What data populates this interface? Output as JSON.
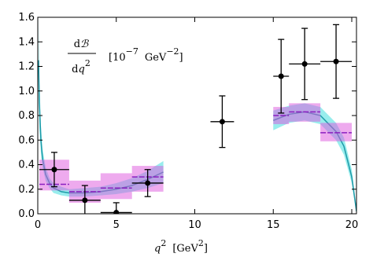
{
  "chart_data": {
    "type": "errorbar",
    "xlabel": {
      "var": "q",
      "exp": "2",
      "unit": "[GeV",
      "unit_exp": "2",
      "close": "]"
    },
    "annotation": {
      "num_d": "d",
      "num_var": "ℬ",
      "den_d": "d",
      "den_var": "q",
      "den_exp": "2",
      "unit_open": "[10",
      "unit_exp": "−7",
      "unit": "GeV",
      "unit_exp2": "−2",
      "unit_close": "]"
    },
    "xlim": [
      0,
      20.3
    ],
    "ylim": [
      0,
      1.6
    ],
    "xticks": [
      0,
      5,
      10,
      15,
      20
    ],
    "yticks": [
      {
        "value": 0,
        "label": "0.0"
      },
      {
        "value": 0.2,
        "label": "0.2"
      },
      {
        "value": 0.4,
        "label": "0.4"
      },
      {
        "value": 0.6,
        "label": "0.6"
      },
      {
        "value": 0.8,
        "label": "0.8"
      },
      {
        "value": 1.0,
        "label": "1.0"
      },
      {
        "value": 1.2,
        "label": "1.2"
      },
      {
        "value": 1.4,
        "label": "1.4"
      },
      {
        "value": 1.6,
        "label": "1.6"
      }
    ],
    "band": {
      "color": "#44dede",
      "line_color": "#1f9aa8",
      "x": [
        0.05,
        0.1,
        0.2,
        0.3,
        0.5,
        0.75,
        1,
        1.5,
        2,
        3,
        4,
        5,
        6,
        7,
        8,
        11.5,
        15,
        16,
        17,
        18,
        19,
        19.5,
        20,
        20.3
      ],
      "values": [
        1.25,
        0.9,
        0.6,
        0.45,
        0.32,
        0.25,
        0.21,
        0.18,
        0.17,
        0.17,
        0.18,
        0.2,
        0.23,
        0.28,
        0.34,
        null,
        0.76,
        0.81,
        0.83,
        0.8,
        0.67,
        0.55,
        0.3,
        0.02
      ],
      "lower": [
        1.0,
        0.7,
        0.5,
        0.38,
        0.27,
        0.21,
        0.17,
        0.15,
        0.14,
        0.14,
        0.15,
        0.16,
        0.18,
        0.21,
        0.25,
        null,
        0.68,
        0.74,
        0.76,
        0.73,
        0.6,
        0.48,
        0.25,
        0.0
      ],
      "upper": [
        1.6,
        1.1,
        0.72,
        0.53,
        0.38,
        0.29,
        0.25,
        0.22,
        0.2,
        0.21,
        0.22,
        0.25,
        0.29,
        0.35,
        0.43,
        null,
        0.84,
        0.88,
        0.9,
        0.87,
        0.74,
        0.62,
        0.36,
        0.04
      ]
    },
    "bins": {
      "color": "#dd55dd",
      "line_color": "#8a1fc0",
      "x_lo": [
        0.1,
        2,
        4,
        6,
        15,
        16,
        18
      ],
      "x_hi": [
        2,
        4,
        6,
        8,
        16,
        18,
        20
      ],
      "values": [
        0.24,
        0.18,
        0.21,
        0.3,
        0.8,
        0.83,
        0.66
      ],
      "lower": [
        0.19,
        0.09,
        0.12,
        0.18,
        0.73,
        0.75,
        0.59
      ],
      "upper": [
        0.44,
        0.27,
        0.33,
        0.39,
        0.87,
        0.9,
        0.74
      ]
    },
    "points": {
      "color": "#000000",
      "x": [
        1.05,
        3,
        5,
        7,
        11.75,
        15.5,
        17,
        19
      ],
      "xerr": [
        0.95,
        1,
        1,
        1,
        0.75,
        0.5,
        1,
        1
      ],
      "values": [
        0.36,
        0.11,
        0.01,
        0.25,
        0.75,
        1.12,
        1.22,
        1.24
      ],
      "yerr": [
        0.14,
        0.12,
        0.08,
        0.11,
        0.21,
        0.3,
        0.29,
        0.3
      ]
    }
  }
}
